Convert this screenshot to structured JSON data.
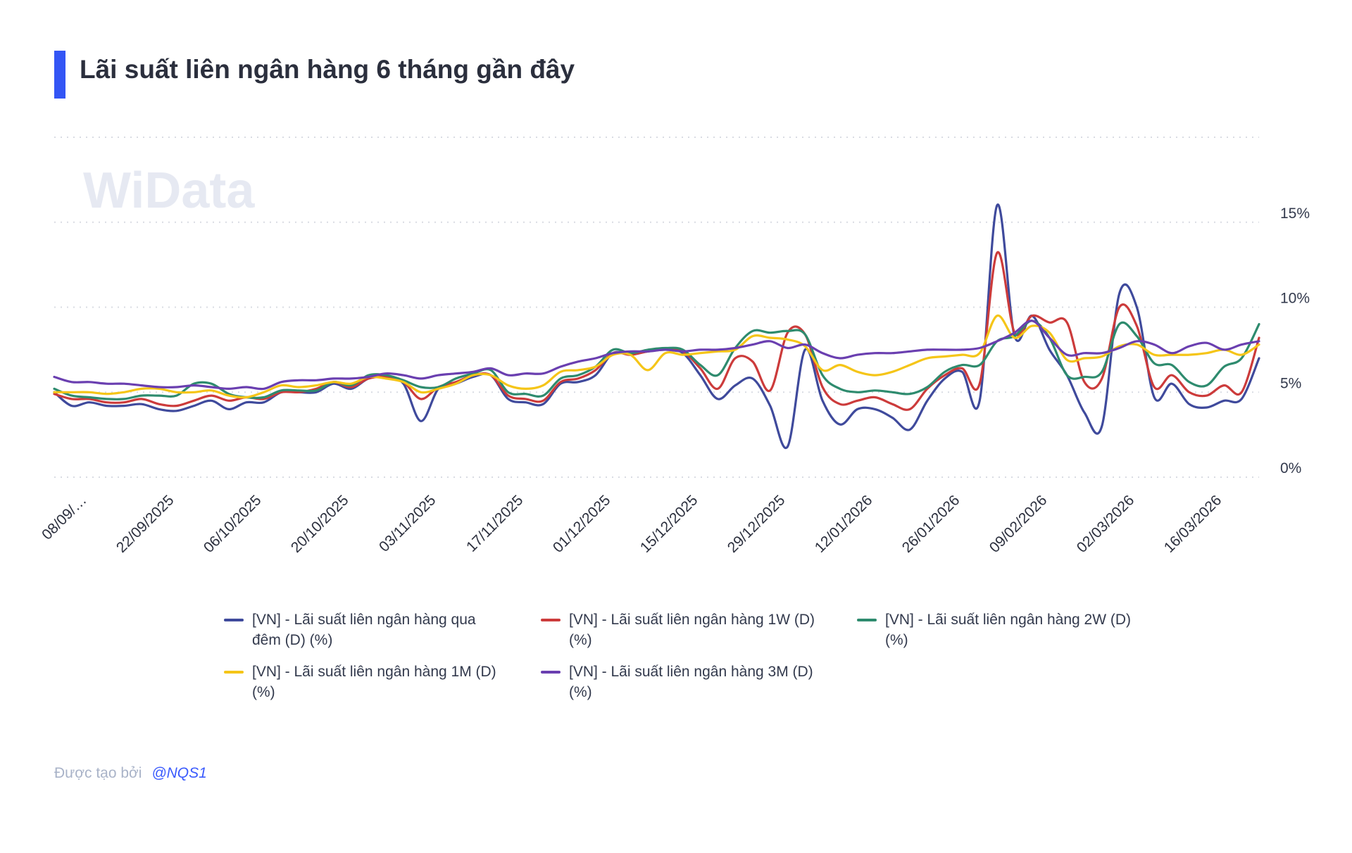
{
  "title": "Lãi suất liên ngân hàng 6 tháng gần đây",
  "watermark": "WiData",
  "footer": {
    "prefix": "Được tạo bởi",
    "user": "@NQS1"
  },
  "chart_data": {
    "type": "line",
    "title": "Lãi suất liên ngân hàng 6 tháng gần đây",
    "ylim": [
      0,
      20
    ],
    "y_ticks": [
      0,
      5,
      10,
      15
    ],
    "y_tick_labels": [
      "0%",
      "5%",
      "10%",
      "15%"
    ],
    "y_axis_position": "right",
    "grid": "horizontal dotted",
    "legend_position": "bottom",
    "x_tick_labels": [
      "08/09/…",
      "22/09/2025",
      "06/10/2025",
      "20/10/2025",
      "03/11/2025",
      "17/11/2025",
      "01/12/2025",
      "15/12/2025",
      "29/12/2025",
      "12/01/2026",
      "26/01/2026",
      "09/02/2026",
      "02/03/2026",
      "16/03/2026"
    ],
    "x_tick_index": [
      0,
      5,
      10,
      15,
      20,
      25,
      30,
      35,
      40,
      45,
      50,
      55,
      60,
      65
    ],
    "series": [
      {
        "name": "[VN] - Lãi suất liên ngân hàng qua đêm (D) (%)",
        "color": "#3f4a9c",
        "values": [
          5.0,
          4.2,
          4.4,
          4.2,
          4.2,
          4.3,
          4.0,
          3.9,
          4.2,
          4.5,
          4.0,
          4.4,
          4.4,
          5.0,
          5.0,
          5.0,
          5.5,
          5.2,
          5.8,
          5.9,
          5.5,
          3.3,
          5.2,
          5.5,
          5.9,
          6.0,
          4.6,
          4.4,
          4.3,
          5.5,
          5.6,
          6.0,
          7.3,
          7.2,
          7.4,
          7.5,
          7.3,
          6.0,
          4.6,
          5.4,
          5.8,
          4.2,
          1.8,
          7.5,
          4.5,
          3.1,
          4.0,
          4.0,
          3.5,
          2.8,
          4.5,
          5.8,
          6.2,
          4.5,
          16.0,
          8.3,
          9.5,
          7.5,
          6.0,
          3.8,
          3.0,
          10.8,
          10.0,
          4.7,
          5.5,
          4.3,
          4.1,
          4.5,
          4.6,
          7.0
        ]
      },
      {
        "name": "[VN] - Lãi suất liên ngân hàng 1W (D) (%)",
        "color": "#cc3b3b",
        "values": [
          4.9,
          4.6,
          4.6,
          4.4,
          4.4,
          4.6,
          4.3,
          4.2,
          4.5,
          4.8,
          4.5,
          4.7,
          4.6,
          5.0,
          5.0,
          5.2,
          5.6,
          5.3,
          5.8,
          5.9,
          5.6,
          4.6,
          5.3,
          5.6,
          6.0,
          6.0,
          4.8,
          4.6,
          4.5,
          5.6,
          5.8,
          6.3,
          7.3,
          7.2,
          7.4,
          7.5,
          7.4,
          6.4,
          5.2,
          7.0,
          6.8,
          5.1,
          8.5,
          8.4,
          5.3,
          4.3,
          4.5,
          4.7,
          4.3,
          4.0,
          5.2,
          6.0,
          6.4,
          5.5,
          13.2,
          8.5,
          9.5,
          9.1,
          9.1,
          5.6,
          5.8,
          10.0,
          8.9,
          5.3,
          6.0,
          5.0,
          4.8,
          5.4,
          5.0,
          8.2
        ]
      },
      {
        "name": "[VN] - Lãi suất liên ngân hàng 2W (D) (%)",
        "color": "#2e8b6e",
        "values": [
          5.2,
          4.8,
          4.7,
          4.6,
          4.6,
          4.8,
          4.8,
          4.8,
          5.5,
          5.5,
          4.9,
          4.7,
          4.7,
          5.1,
          5.1,
          5.1,
          5.6,
          5.4,
          6.0,
          6.0,
          5.7,
          5.3,
          5.3,
          5.8,
          6.1,
          6.3,
          5.0,
          4.9,
          4.8,
          5.8,
          6.0,
          6.5,
          7.5,
          7.3,
          7.5,
          7.6,
          7.5,
          6.6,
          6.0,
          7.6,
          8.6,
          8.5,
          8.6,
          8.4,
          6.0,
          5.2,
          5.0,
          5.1,
          5.0,
          4.9,
          5.3,
          6.2,
          6.6,
          6.6,
          8.0,
          8.3,
          9.2,
          8.2,
          6.0,
          5.9,
          6.2,
          9.0,
          8.3,
          6.7,
          6.6,
          5.6,
          5.4,
          6.5,
          7.0,
          9.0
        ]
      },
      {
        "name": "[VN] - Lãi suất liên ngân hàng 1M (D) (%)",
        "color": "#f5c518",
        "values": [
          5.0,
          5.0,
          5.0,
          4.9,
          5.0,
          5.2,
          5.2,
          5.0,
          5.0,
          5.1,
          4.8,
          4.7,
          5.0,
          5.4,
          5.3,
          5.4,
          5.6,
          5.5,
          5.9,
          5.8,
          5.6,
          5.0,
          5.2,
          5.5,
          6.0,
          6.0,
          5.4,
          5.2,
          5.4,
          6.2,
          6.3,
          6.5,
          7.2,
          7.2,
          6.3,
          7.3,
          7.2,
          7.3,
          7.4,
          7.5,
          8.3,
          8.2,
          8.1,
          7.7,
          6.3,
          6.6,
          6.2,
          6.0,
          6.2,
          6.6,
          7.0,
          7.1,
          7.2,
          7.3,
          9.5,
          8.2,
          8.9,
          8.5,
          6.9,
          7.0,
          7.1,
          7.7,
          7.8,
          7.2,
          7.2,
          7.2,
          7.3,
          7.5,
          7.2,
          7.8
        ]
      },
      {
        "name": "[VN] - Lãi suất liên ngân hàng 3M (D) (%)",
        "color": "#6a3fb0",
        "values": [
          5.9,
          5.6,
          5.6,
          5.5,
          5.5,
          5.4,
          5.3,
          5.3,
          5.4,
          5.3,
          5.2,
          5.3,
          5.2,
          5.6,
          5.7,
          5.7,
          5.8,
          5.8,
          5.9,
          6.1,
          6.0,
          5.8,
          6.0,
          6.1,
          6.2,
          6.4,
          6.0,
          6.1,
          6.1,
          6.5,
          6.8,
          7.0,
          7.3,
          7.4,
          7.4,
          7.5,
          7.4,
          7.5,
          7.5,
          7.6,
          7.8,
          8.0,
          7.6,
          7.8,
          7.3,
          7.0,
          7.2,
          7.3,
          7.3,
          7.4,
          7.5,
          7.5,
          7.5,
          7.6,
          8.0,
          8.5,
          9.2,
          8.2,
          7.2,
          7.3,
          7.3,
          7.6,
          8.0,
          7.8,
          7.3,
          7.7,
          7.9,
          7.5,
          7.8,
          8.0
        ]
      }
    ]
  }
}
